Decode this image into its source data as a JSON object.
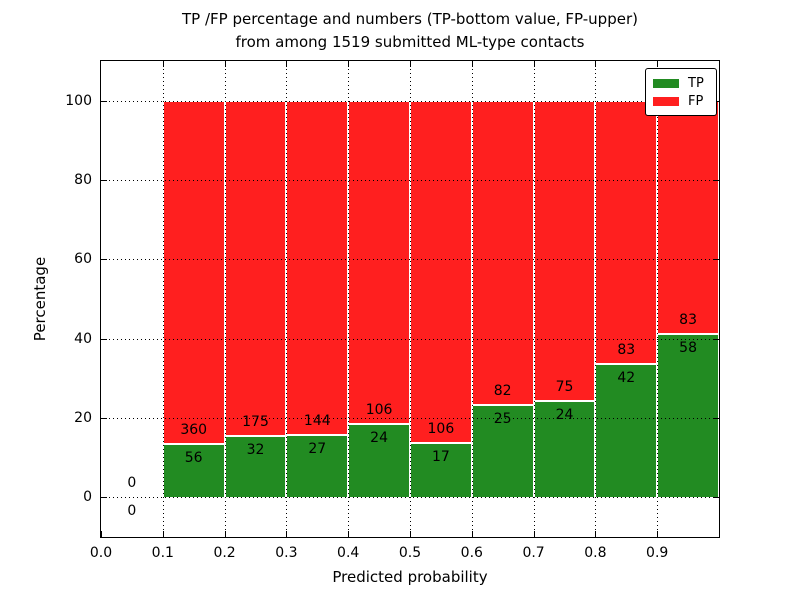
{
  "chart_data": {
    "type": "bar",
    "stacked": true,
    "title_line1": "TP /FP percentage and numbers (TP-bottom value, FP-upper)",
    "title_line2": "from among 1519 submitted ML-type contacts",
    "xlabel": "Predicted probability",
    "ylabel": "Percentage",
    "xlim": [
      0.0,
      1.0
    ],
    "ylim": [
      -10,
      110
    ],
    "x_tick_labels": [
      "0.0",
      "0.1",
      "0.2",
      "0.3",
      "0.4",
      "0.5",
      "0.6",
      "0.7",
      "0.8",
      "0.9"
    ],
    "y_tick_values": [
      0,
      20,
      40,
      60,
      80,
      100
    ],
    "grid": true,
    "legend": {
      "position": "upper right",
      "entries": [
        {
          "label": "TP",
          "color": "#228b22"
        },
        {
          "label": "FP",
          "color": "#ff1f1f"
        }
      ]
    },
    "colors": {
      "tp": "#228b22",
      "fp": "#ff1f1f",
      "grid": "#000000",
      "background": "#ffffff"
    },
    "bins": [
      {
        "range": [
          0.0,
          0.1
        ],
        "tp": 0,
        "fp": 0,
        "tp_pct": 0,
        "fp_pct": 0
      },
      {
        "range": [
          0.1,
          0.2
        ],
        "tp": 56,
        "fp": 360,
        "tp_pct": 13.46,
        "fp_pct": 86.54
      },
      {
        "range": [
          0.2,
          0.3
        ],
        "tp": 32,
        "fp": 175,
        "tp_pct": 15.46,
        "fp_pct": 84.54
      },
      {
        "range": [
          0.3,
          0.4
        ],
        "tp": 27,
        "fp": 144,
        "tp_pct": 15.79,
        "fp_pct": 84.21
      },
      {
        "range": [
          0.4,
          0.5
        ],
        "tp": 24,
        "fp": 106,
        "tp_pct": 18.46,
        "fp_pct": 81.54
      },
      {
        "range": [
          0.5,
          0.6
        ],
        "tp": 17,
        "fp": 106,
        "tp_pct": 13.82,
        "fp_pct": 86.18
      },
      {
        "range": [
          0.6,
          0.7
        ],
        "tp": 25,
        "fp": 82,
        "tp_pct": 23.36,
        "fp_pct": 76.64
      },
      {
        "range": [
          0.7,
          0.8
        ],
        "tp": 24,
        "fp": 75,
        "tp_pct": 24.24,
        "fp_pct": 75.76
      },
      {
        "range": [
          0.8,
          0.9
        ],
        "tp": 42,
        "fp": 83,
        "tp_pct": 33.6,
        "fp_pct": 66.4
      },
      {
        "range": [
          0.9,
          1.0
        ],
        "tp": 58,
        "fp": 83,
        "tp_pct": 41.13,
        "fp_pct": 58.87
      }
    ]
  }
}
